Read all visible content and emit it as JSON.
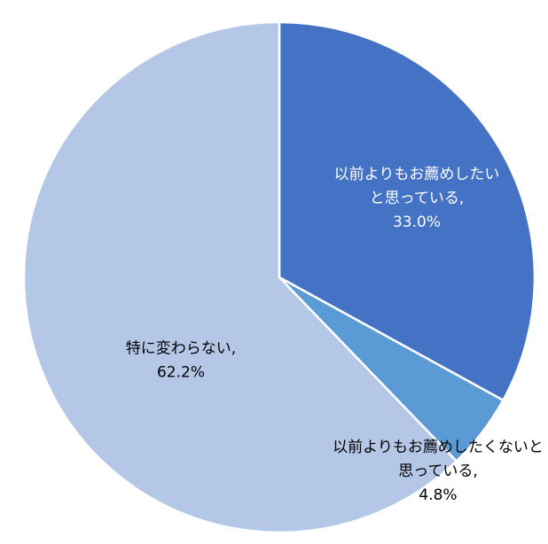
{
  "chart_data": {
    "type": "pie",
    "title": "",
    "slices": [
      {
        "label_lines": [
          "以前よりもお薦めしたい",
          "と思っている,"
        ],
        "value": 33.0,
        "value_label": "33.0%",
        "color": "#4472c4",
        "text_color": "#ffffff"
      },
      {
        "label_lines": [
          "以前よりもお薦めしたくないと",
          "思っている,"
        ],
        "value": 4.8,
        "value_label": "4.8%",
        "color": "#5b9bd5",
        "text_color": "#000000"
      },
      {
        "label_lines": [
          "特に変わらない,"
        ],
        "value": 62.2,
        "value_label": "62.2%",
        "color": "#b4c7e7",
        "text_color": "#000000"
      }
    ],
    "legend": "none",
    "start_angle": "12 o'clock, clockwise"
  }
}
